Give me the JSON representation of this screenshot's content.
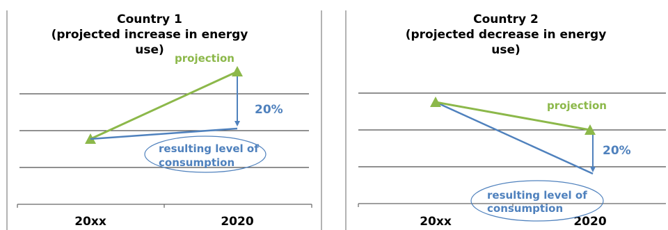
{
  "panels": [
    {
      "title_lines": [
        "Country 1",
        "(projected increase in energy",
        "use)"
      ],
      "projection_label": "projection",
      "change_label": "20%",
      "result_label_lines": [
        "resulting level of",
        "consumption"
      ],
      "x_labels": [
        "20xx",
        "2020"
      ]
    },
    {
      "title_lines": [
        "Country 2",
        "(projected decrease in energy",
        "use)"
      ],
      "projection_label": "projection",
      "change_label": "20%",
      "result_label_lines": [
        "resulting level of",
        "consumption"
      ],
      "x_labels": [
        "20xx",
        "2020"
      ]
    }
  ],
  "colors": {
    "projection": "#8cb84a",
    "result": "#4f81bd",
    "grid": "#4d4d4d"
  }
}
